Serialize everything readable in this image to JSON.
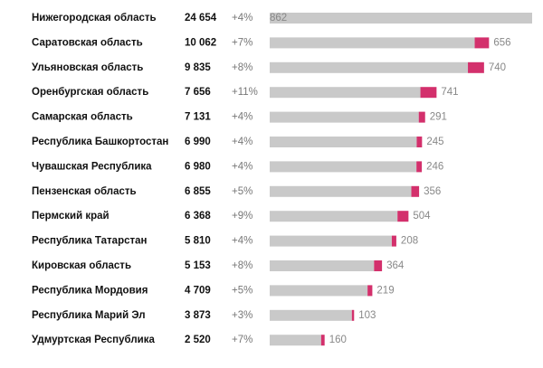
{
  "chart_data": {
    "type": "stacked-bar-horizontal",
    "categories": [
      "Нижегородская область",
      "Саратовская область",
      "Ульяновская область",
      "Оренбургская область",
      "Самарская область",
      "Республика Башкортостан",
      "Чувашская Республика",
      "Пензенская область",
      "Пермский край",
      "Республика Татарстан",
      "Кировская область",
      "Республика Мордовия",
      "Республика Марий Эл",
      "Удмуртская Республика"
    ],
    "values": [
      24654,
      10062,
      9835,
      7656,
      7131,
      6990,
      6980,
      6855,
      6368,
      5810,
      5153,
      4709,
      3873,
      2520
    ],
    "value_labels": [
      "24 654",
      "10 062",
      "9 835",
      "7 656",
      "7 131",
      "6 990",
      "6 980",
      "6 855",
      "6 368",
      "5 810",
      "5 153",
      "4 709",
      "3 873",
      "2 520"
    ],
    "changes": [
      "+4%",
      "+7%",
      "+8%",
      "+11%",
      "+4%",
      "+4%",
      "+4%",
      "+5%",
      "+9%",
      "+4%",
      "+8%",
      "+5%",
      "+3%",
      "+7%"
    ],
    "increases": [
      862,
      656,
      740,
      741,
      291,
      245,
      246,
      356,
      504,
      208,
      364,
      219,
      103,
      160
    ],
    "base_color": "#c9c9c9",
    "increase_color": "#d3306c",
    "xlim": [
      0,
      12000
    ]
  }
}
